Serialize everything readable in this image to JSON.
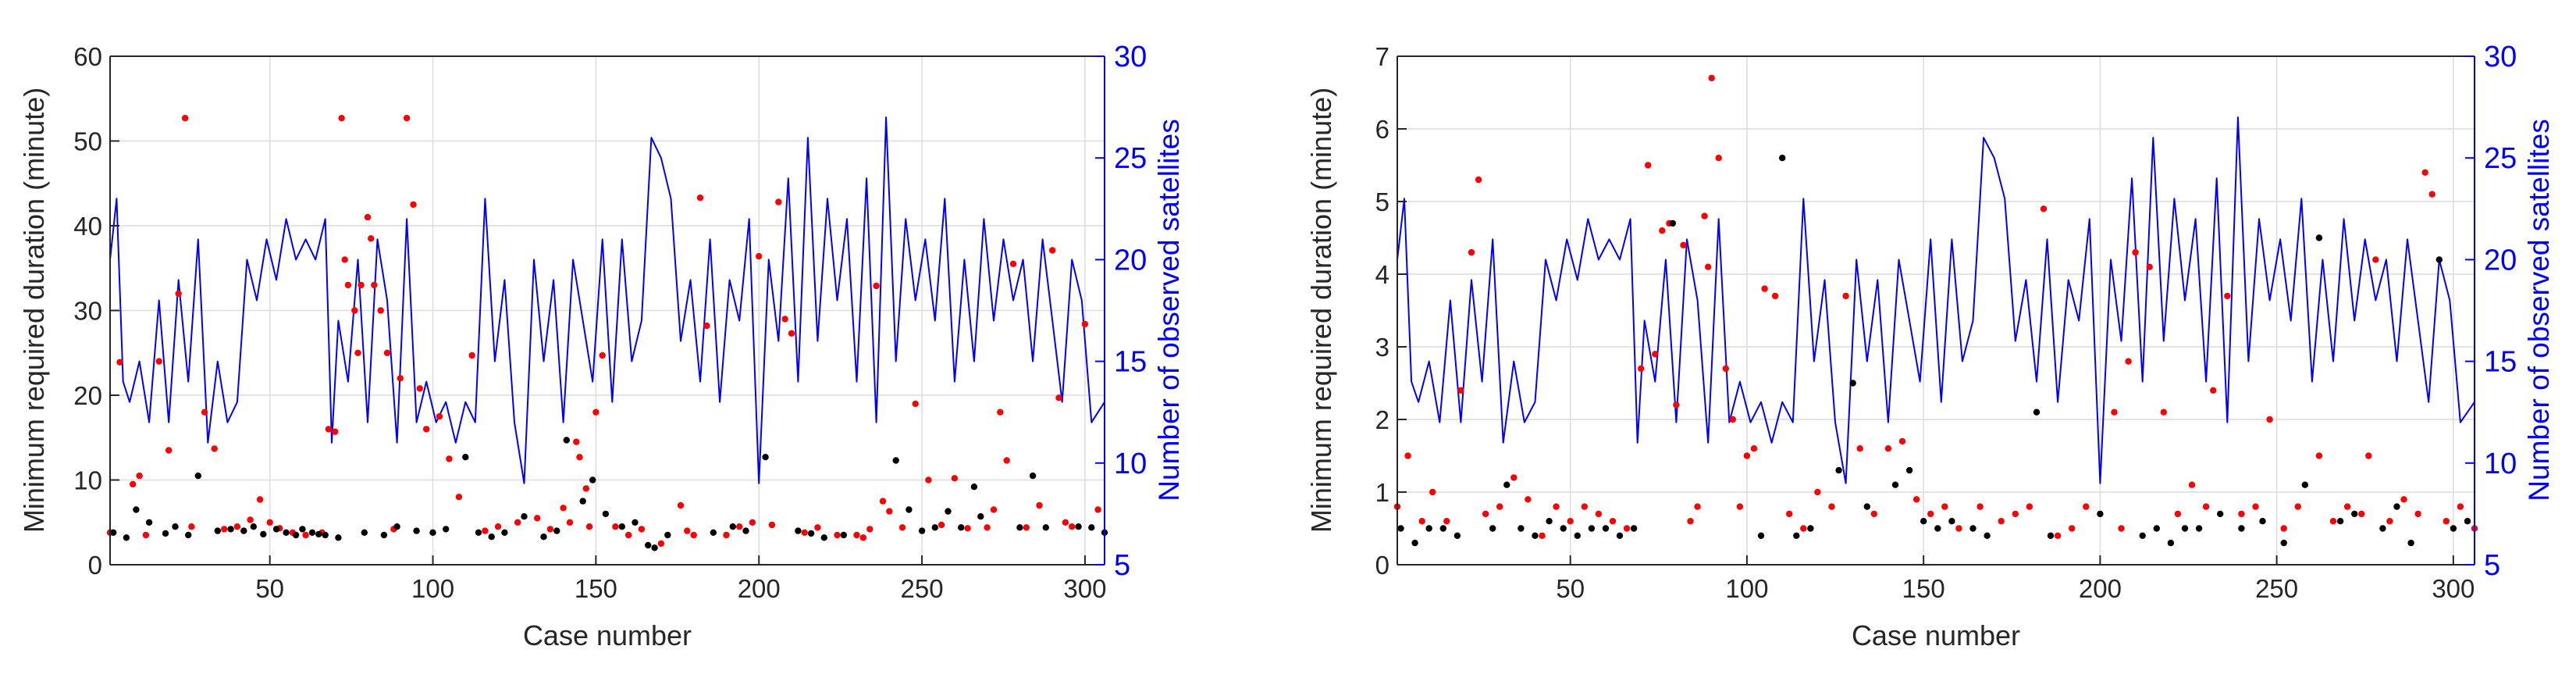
{
  "chart_data": [
    {
      "type": "scatter",
      "xlabel": "Case number",
      "ylabel": "Minimum required duration (minute)",
      "y2label": "Number of observed satellites",
      "xlim": [
        1,
        306
      ],
      "ylim": [
        0,
        60
      ],
      "y2lim": [
        5,
        30
      ],
      "xticks": [
        50,
        100,
        150,
        200,
        250,
        300
      ],
      "yticks": [
        0,
        10,
        20,
        30,
        40,
        50,
        60
      ],
      "y2ticks": [
        5,
        10,
        15,
        20,
        25,
        30
      ],
      "grid": true,
      "colors": {
        "red_points": "#ff0000",
        "black_points": "#000000",
        "satellite_line": "#0000ff"
      },
      "series": [
        {
          "role": "red-points",
          "color": "#ff0000",
          "x": [
            1,
            4,
            8,
            10,
            12,
            16,
            19,
            22,
            24,
            26,
            30,
            33,
            36,
            40,
            44,
            47,
            50,
            53,
            57,
            61,
            66,
            68,
            70,
            72,
            73,
            74,
            76,
            77,
            78,
            80,
            81,
            82,
            84,
            86,
            88,
            90,
            92,
            94,
            96,
            98,
            102,
            105,
            108,
            112,
            116,
            120,
            126,
            132,
            136,
            140,
            142,
            144,
            145,
            147,
            148,
            150,
            152,
            156,
            160,
            164,
            170,
            176,
            178,
            180,
            182,
            184,
            190,
            194,
            198,
            200,
            204,
            206,
            208,
            210,
            214,
            218,
            224,
            230,
            232,
            234,
            236,
            238,
            240,
            244,
            248,
            252,
            256,
            260,
            264,
            270,
            272,
            274,
            276,
            278,
            282,
            286,
            290,
            292,
            294,
            296,
            300,
            304
          ],
          "y": [
            3.8,
            23.9,
            9.5,
            10.5,
            3.5,
            24,
            13.5,
            32,
            52.7,
            4.5,
            18,
            13.7,
            4.2,
            4.5,
            5.3,
            7.7,
            5,
            4.3,
            3.8,
            3.5,
            3.8,
            16,
            15.7,
            52.7,
            36,
            33,
            30,
            25,
            33,
            41,
            38.5,
            33,
            30,
            25,
            4.2,
            22,
            52.7,
            42.5,
            20.8,
            16,
            17.5,
            12.5,
            8,
            24.7,
            4,
            4.5,
            5,
            5.5,
            4.2,
            6.7,
            5,
            14.5,
            12.7,
            9,
            4.5,
            18,
            24.7,
            4.5,
            3.5,
            4.2,
            2.5,
            7,
            4,
            3.5,
            43.3,
            28.2,
            3.5,
            4.5,
            5,
            36.4,
            4.7,
            42.8,
            29,
            27.3,
            3.8,
            4.4,
            3.5,
            3.5,
            3.2,
            4.2,
            32.9,
            7.5,
            6.3,
            4.4,
            19,
            10,
            4.7,
            10.2,
            4.3,
            4.4,
            6.5,
            18,
            12.3,
            35.5,
            4.4,
            7,
            37.1,
            19.7,
            5,
            4.5,
            28.4,
            6.5
          ]
        },
        {
          "role": "black-points",
          "color": "#000000",
          "x": [
            2,
            6,
            9,
            13,
            18,
            21,
            25,
            28,
            34,
            38,
            42,
            45,
            48,
            52,
            55,
            58,
            60,
            63,
            65,
            67,
            71,
            79,
            85,
            89,
            95,
            100,
            104,
            110,
            114,
            118,
            122,
            128,
            134,
            138,
            141,
            146,
            149,
            153,
            158,
            162,
            166,
            168,
            172,
            186,
            192,
            196,
            202,
            212,
            216,
            220,
            226,
            242,
            246,
            250,
            254,
            258,
            262,
            266,
            268,
            280,
            284,
            288,
            298,
            302,
            306
          ],
          "y": [
            3.8,
            3.2,
            6.5,
            5,
            3.7,
            4.5,
            3.5,
            10.5,
            4,
            4.2,
            4,
            4.5,
            3.6,
            4.2,
            3.8,
            3.5,
            4.2,
            3.8,
            3.6,
            3.5,
            3.2,
            3.8,
            3.5,
            4.5,
            4,
            3.8,
            4.2,
            12.7,
            3.8,
            3.3,
            3.8,
            5.7,
            3.3,
            4,
            14.7,
            7.5,
            10,
            6,
            4.5,
            5,
            2.3,
            2,
            3.5,
            3.8,
            4.5,
            4,
            12.7,
            4,
            3.7,
            3.2,
            3.5,
            12.3,
            6.5,
            4,
            4.4,
            6.3,
            4.4,
            9.2,
            5.7,
            4.4,
            10.5,
            4.4,
            4.5,
            4.4,
            3.8
          ]
        },
        {
          "role": "satellite-line",
          "color": "#0000ff",
          "axis": "right",
          "x": [
            1,
            3,
            5,
            7,
            10,
            13,
            16,
            19,
            22,
            25,
            28,
            31,
            34,
            37,
            40,
            43,
            46,
            49,
            52,
            55,
            58,
            61,
            64,
            67,
            69,
            71,
            74,
            77,
            80,
            83,
            86,
            89,
            92,
            95,
            98,
            101,
            104,
            107,
            110,
            113,
            116,
            119,
            122,
            125,
            128,
            131,
            134,
            137,
            140,
            143,
            146,
            149,
            152,
            155,
            158,
            161,
            164,
            167,
            170,
            173,
            176,
            179,
            182,
            185,
            188,
            191,
            194,
            197,
            200,
            203,
            206,
            209,
            212,
            215,
            218,
            221,
            224,
            227,
            230,
            233,
            236,
            239,
            242,
            245,
            248,
            251,
            254,
            257,
            260,
            263,
            266,
            269,
            272,
            275,
            278,
            281,
            284,
            287,
            290,
            293,
            296,
            299,
            302,
            306
          ],
          "y": [
            20,
            23,
            14,
            13,
            15,
            12,
            18,
            12,
            19,
            14,
            21,
            11,
            15,
            12,
            13,
            20,
            18,
            21,
            19,
            22,
            20,
            21,
            20,
            22,
            11,
            17,
            14,
            20,
            12,
            21,
            18,
            11,
            22,
            12,
            14,
            12,
            13,
            11,
            13,
            12,
            23,
            15,
            19,
            12,
            9,
            20,
            15,
            19,
            12,
            20,
            17,
            14,
            21,
            13,
            21,
            15,
            17,
            26,
            25,
            23,
            16,
            19,
            14,
            21,
            13,
            19,
            17,
            22,
            9,
            20,
            16,
            24,
            14,
            26,
            16,
            23,
            18,
            22,
            14,
            24,
            12,
            27,
            15,
            22,
            18,
            21,
            17,
            23,
            14,
            20,
            15,
            22,
            17,
            21,
            18,
            20,
            15,
            21,
            17,
            13,
            20,
            18,
            12,
            13
          ]
        }
      ]
    },
    {
      "type": "scatter",
      "xlabel": "Case number",
      "ylabel": "Minimum required duration (minute)",
      "y2label": "Number of observed satellites",
      "xlim": [
        1,
        306
      ],
      "ylim": [
        0,
        7
      ],
      "y2lim": [
        5,
        30
      ],
      "xticks": [
        50,
        100,
        150,
        200,
        250,
        300
      ],
      "yticks": [
        0,
        1,
        2,
        3,
        4,
        5,
        6,
        7
      ],
      "y2ticks": [
        5,
        10,
        15,
        20,
        25,
        30
      ],
      "grid": true,
      "colors": {
        "red_points": "#ff0000",
        "black_points": "#000000",
        "satellite_line": "#0000ff"
      },
      "series": [
        {
          "role": "red-points",
          "color": "#ff0000",
          "x": [
            1,
            4,
            8,
            11,
            15,
            19,
            22,
            24,
            26,
            30,
            34,
            38,
            42,
            46,
            50,
            54,
            58,
            62,
            66,
            70,
            72,
            74,
            76,
            78,
            80,
            82,
            84,
            86,
            88,
            89,
            90,
            92,
            94,
            96,
            98,
            100,
            102,
            105,
            108,
            112,
            116,
            120,
            124,
            128,
            132,
            136,
            140,
            144,
            148,
            152,
            156,
            160,
            166,
            172,
            176,
            180,
            184,
            188,
            192,
            196,
            204,
            206,
            208,
            210,
            214,
            218,
            222,
            226,
            230,
            232,
            236,
            240,
            244,
            248,
            252,
            256,
            262,
            266,
            270,
            274,
            276,
            278,
            282,
            286,
            290,
            292,
            294,
            298,
            302,
            306
          ],
          "y": [
            0.8,
            1.5,
            0.6,
            1,
            0.6,
            2.4,
            4.3,
            5.3,
            0.7,
            0.8,
            1.2,
            0.9,
            0.4,
            0.8,
            0.6,
            0.8,
            0.7,
            0.6,
            0.5,
            2.7,
            5.5,
            2.9,
            4.6,
            4.7,
            2.2,
            4.4,
            0.6,
            0.8,
            4.8,
            4.1,
            6.7,
            5.6,
            2.7,
            2,
            0.8,
            1.5,
            1.6,
            3.8,
            3.7,
            0.7,
            0.5,
            1,
            0.8,
            3.7,
            1.6,
            0.7,
            1.6,
            1.7,
            0.9,
            0.7,
            0.8,
            0.5,
            0.8,
            0.6,
            0.7,
            0.8,
            4.9,
            0.4,
            0.5,
            0.8,
            2.1,
            0.5,
            2.8,
            4.3,
            4.1,
            2.1,
            0.7,
            1.1,
            0.8,
            2.4,
            3.7,
            0.7,
            0.8,
            2,
            0.5,
            0.8,
            1.5,
            0.6,
            0.8,
            0.7,
            1.5,
            4.2,
            0.6,
            0.9,
            0.7,
            5.4,
            5.1,
            0.6,
            0.8,
            0.5
          ]
        },
        {
          "role": "black-points",
          "color": "#000000",
          "x": [
            2,
            6,
            10,
            14,
            18,
            28,
            32,
            36,
            40,
            44,
            48,
            52,
            56,
            60,
            64,
            68,
            79,
            104,
            110,
            114,
            118,
            126,
            130,
            134,
            142,
            146,
            150,
            154,
            158,
            164,
            168,
            182,
            186,
            200,
            212,
            216,
            220,
            224,
            228,
            234,
            240,
            246,
            252,
            258,
            262,
            268,
            272,
            280,
            284,
            288,
            296,
            300,
            304
          ],
          "y": [
            0.5,
            0.3,
            0.5,
            0.5,
            0.4,
            0.5,
            1.1,
            0.5,
            0.4,
            0.6,
            0.5,
            0.4,
            0.5,
            0.5,
            0.4,
            0.5,
            4.7,
            0.4,
            5.6,
            0.4,
            0.5,
            1.3,
            2.5,
            0.8,
            1.1,
            1.3,
            0.6,
            0.5,
            0.6,
            0.5,
            0.4,
            2.1,
            0.4,
            0.7,
            0.4,
            0.5,
            0.3,
            0.5,
            0.5,
            0.7,
            0.5,
            0.6,
            0.3,
            1.1,
            4.5,
            0.6,
            0.7,
            0.5,
            0.8,
            0.3,
            4.2,
            0.5,
            0.6
          ]
        },
        {
          "role": "satellite-line",
          "color": "#0000ff",
          "axis": "right",
          "x": [
            1,
            3,
            5,
            7,
            10,
            13,
            16,
            19,
            22,
            25,
            28,
            31,
            34,
            37,
            40,
            43,
            46,
            49,
            52,
            55,
            58,
            61,
            64,
            67,
            69,
            71,
            74,
            77,
            80,
            83,
            86,
            89,
            92,
            95,
            98,
            101,
            104,
            107,
            110,
            113,
            116,
            119,
            122,
            125,
            128,
            131,
            134,
            137,
            140,
            143,
            146,
            149,
            152,
            155,
            158,
            161,
            164,
            167,
            170,
            173,
            176,
            179,
            182,
            185,
            188,
            191,
            194,
            197,
            200,
            203,
            206,
            209,
            212,
            215,
            218,
            221,
            224,
            227,
            230,
            233,
            236,
            239,
            242,
            245,
            248,
            251,
            254,
            257,
            260,
            263,
            266,
            269,
            272,
            275,
            278,
            281,
            284,
            287,
            290,
            293,
            296,
            299,
            302,
            306
          ],
          "y": [
            20,
            23,
            14,
            13,
            15,
            12,
            18,
            12,
            19,
            14,
            21,
            11,
            15,
            12,
            13,
            20,
            18,
            21,
            19,
            22,
            20,
            21,
            20,
            22,
            11,
            17,
            14,
            20,
            12,
            21,
            18,
            11,
            22,
            12,
            14,
            12,
            13,
            11,
            13,
            12,
            23,
            15,
            19,
            12,
            9,
            20,
            15,
            19,
            12,
            20,
            17,
            14,
            21,
            13,
            21,
            15,
            17,
            26,
            25,
            23,
            16,
            19,
            14,
            21,
            13,
            19,
            17,
            22,
            9,
            20,
            16,
            24,
            14,
            26,
            16,
            23,
            18,
            22,
            14,
            24,
            12,
            27,
            15,
            22,
            18,
            21,
            17,
            23,
            14,
            20,
            15,
            22,
            17,
            21,
            18,
            20,
            15,
            21,
            17,
            13,
            20,
            18,
            12,
            13
          ]
        }
      ]
    }
  ]
}
